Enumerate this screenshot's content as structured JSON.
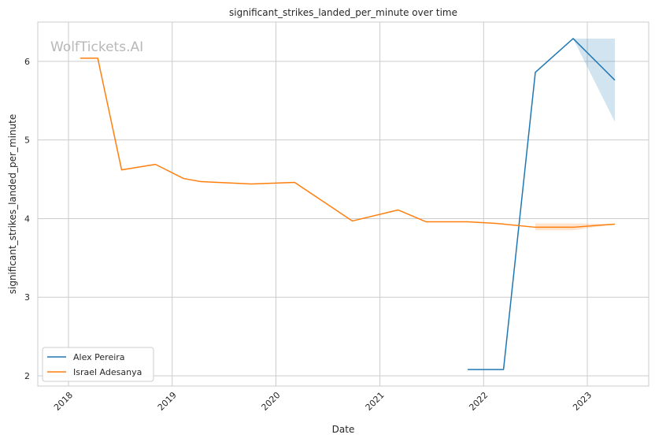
{
  "watermark": "WolfTickets.AI",
  "chart_data": {
    "type": "line",
    "title": "significant_strikes_landed_per_minute over time",
    "xlabel": "Date",
    "ylabel": "significant_strikes_landed_per_minute",
    "x_ticks": [
      "2018",
      "2019",
      "2020",
      "2021",
      "2022",
      "2023"
    ],
    "y_ticks": [
      "2",
      "3",
      "4",
      "5",
      "6"
    ],
    "xlim": [
      "2017-09-15",
      "2023-08-05"
    ],
    "ylim": [
      1.87,
      6.5
    ],
    "grid": true,
    "legend_position": "lower-left",
    "series": [
      {
        "name": "Alex Pereira",
        "color": "#1f77b4",
        "points": [
          [
            "2021-11-06",
            2.08
          ],
          [
            "2022-03-12",
            2.08
          ],
          [
            "2022-07-02",
            5.86
          ],
          [
            "2022-11-12",
            6.29
          ],
          [
            "2023-04-08",
            5.76
          ]
        ],
        "band": [
          [
            "2022-11-12",
            6.29,
            6.29
          ],
          [
            "2023-04-08",
            5.23,
            6.29
          ]
        ]
      },
      {
        "name": "Israel Adesanya",
        "color": "#ff7f0e",
        "points": [
          [
            "2018-02-11",
            6.04
          ],
          [
            "2018-04-14",
            6.04
          ],
          [
            "2018-07-07",
            4.62
          ],
          [
            "2018-11-03",
            4.69
          ],
          [
            "2019-02-10",
            4.51
          ],
          [
            "2019-04-13",
            4.47
          ],
          [
            "2019-10-06",
            4.44
          ],
          [
            "2020-03-07",
            4.46
          ],
          [
            "2020-09-26",
            3.97
          ],
          [
            "2021-03-06",
            4.11
          ],
          [
            "2021-06-12",
            3.96
          ],
          [
            "2021-11-06",
            3.96
          ],
          [
            "2022-02-12",
            3.94
          ],
          [
            "2022-07-02",
            3.89
          ],
          [
            "2022-11-12",
            3.89
          ],
          [
            "2023-04-08",
            3.93
          ]
        ],
        "band": [
          [
            "2022-07-02",
            3.85,
            3.94
          ],
          [
            "2022-11-12",
            3.85,
            3.94
          ],
          [
            "2023-04-08",
            3.93,
            3.93
          ]
        ]
      }
    ]
  }
}
